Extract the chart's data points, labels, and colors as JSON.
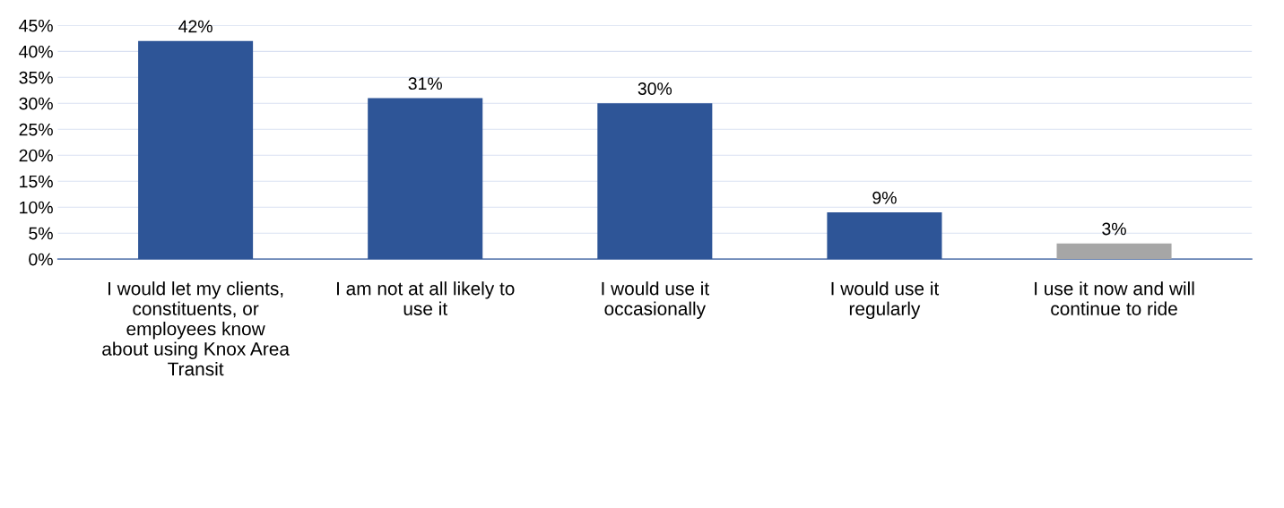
{
  "chart_data": {
    "type": "bar",
    "categories": [
      "I would let my clients,\nconstituents, or\nemployees know\nabout using Knox Area\nTransit",
      "I am not at all likely to\nuse it",
      "I would use it\noccasionally",
      "I would use it\nregularly",
      "I use it now and will\ncontinue to ride"
    ],
    "values": [
      42,
      31,
      30,
      9,
      3
    ],
    "colors": [
      "#2e5597",
      "#2e5597",
      "#2e5597",
      "#2e5597",
      "#a6a6a6"
    ],
    "value_labels": [
      "42%",
      "31%",
      "30%",
      "9%",
      "3%"
    ],
    "ylim": [
      0,
      45
    ],
    "yticks": [
      {
        "value": 0,
        "label": "0%"
      },
      {
        "value": 5,
        "label": "5%"
      },
      {
        "value": 10,
        "label": "10%"
      },
      {
        "value": 15,
        "label": "15%"
      },
      {
        "value": 20,
        "label": "20%"
      },
      {
        "value": 25,
        "label": "25%"
      },
      {
        "value": 30,
        "label": "30%"
      },
      {
        "value": 35,
        "label": "35%"
      },
      {
        "value": 40,
        "label": "40%"
      },
      {
        "value": 45,
        "label": "45%"
      }
    ],
    "grid": "y"
  }
}
